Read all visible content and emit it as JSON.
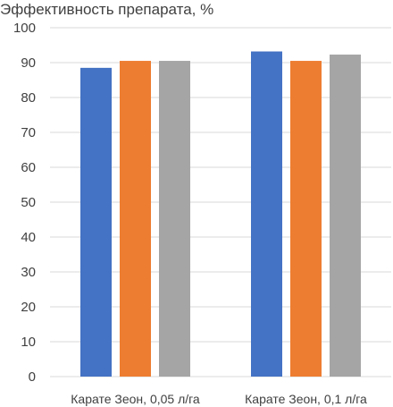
{
  "chart_data": {
    "type": "bar",
    "title": "Эффективность препарата, %",
    "xlabel": "",
    "ylabel": "",
    "categories": [
      "Карате Зеон, 0,05 л/га",
      "Карате Зеон, 0,1 л/га"
    ],
    "series": [
      {
        "color": "#4472C4",
        "values": [
          88.5,
          93.2
        ]
      },
      {
        "color": "#ED7D31",
        "values": [
          90.5,
          90.5
        ]
      },
      {
        "color": "#A5A5A5",
        "values": [
          90.5,
          92.3
        ]
      }
    ],
    "ylim": [
      0,
      100
    ],
    "yticks": [
      "0",
      "10",
      "20",
      "30",
      "40",
      "50",
      "60",
      "70",
      "80",
      "90",
      "100"
    ],
    "grid": true,
    "legend": "none"
  }
}
